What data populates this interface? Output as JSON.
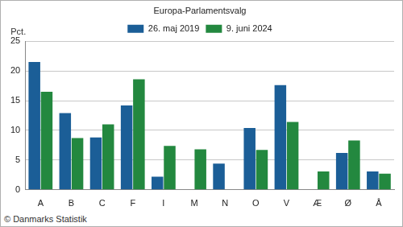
{
  "chart_data": {
    "type": "bar",
    "title": "Europa-Parlamentsvalg",
    "ylabel": "Pct.",
    "source": "© Danmarks Statistik",
    "categories": [
      "A",
      "B",
      "C",
      "F",
      "I",
      "M",
      "N",
      "O",
      "V",
      "Æ",
      "Ø",
      "Å"
    ],
    "series": [
      {
        "name": "26. maj 2019",
        "color": "#1b5e97",
        "values": [
          21.5,
          12.9,
          8.8,
          14.2,
          2.2,
          null,
          4.4,
          10.4,
          17.6,
          null,
          6.2,
          3.1
        ]
      },
      {
        "name": "9. juni 2024",
        "color": "#23883f",
        "values": [
          16.5,
          8.7,
          11.0,
          18.6,
          7.4,
          6.8,
          null,
          6.7,
          11.4,
          3.1,
          8.3,
          2.7
        ]
      }
    ],
    "ylim": [
      0,
      25
    ],
    "yticks": [
      0,
      5,
      10,
      15,
      20,
      25
    ],
    "grid": true,
    "legend": "top"
  }
}
